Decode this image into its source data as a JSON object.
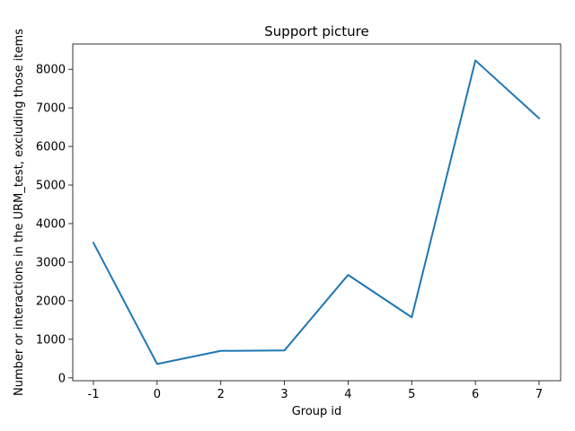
{
  "chart_data": {
    "type": "line",
    "title": "Support picture",
    "xlabel": "Group id",
    "ylabel": "Number or interactions in the URM_test, excluding those items",
    "categories": [
      "-1",
      "0",
      "2",
      "3",
      "4",
      "5",
      "6",
      "7"
    ],
    "series": [
      {
        "values": [
          3500,
          360,
          700,
          710,
          2670,
          1570,
          8230,
          6730
        ]
      }
    ],
    "yticks": [
      0,
      1000,
      2000,
      3000,
      4000,
      5000,
      6000,
      7000,
      8000
    ],
    "ylim": [
      -33,
      8600
    ],
    "grid": false,
    "line_color": "#1f77b4"
  }
}
